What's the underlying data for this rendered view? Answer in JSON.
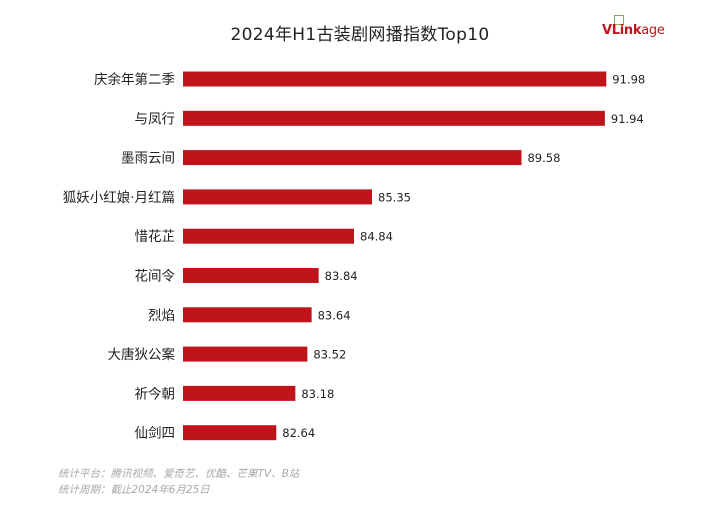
{
  "logo": {
    "text_main": "VLink",
    "text_sub": "age",
    "color": "#c2161b"
  },
  "chart_data": {
    "type": "bar",
    "orientation": "horizontal",
    "title": "2024年H1古装剧网播指数Top10",
    "categories": [
      "庆余年第二季",
      "与凤行",
      "墨雨云间",
      "狐妖小红娘·月红篇",
      "惜花芷",
      "花间令",
      "烈焰",
      "大唐狄公案",
      "祈今朝",
      "仙剑四"
    ],
    "values": [
      91.98,
      91.94,
      89.58,
      85.35,
      84.84,
      83.84,
      83.64,
      83.52,
      83.18,
      82.64
    ],
    "value_labels": [
      "91.98",
      "91.94",
      "89.58",
      "85.35",
      "84.84",
      "83.84",
      "83.64",
      "83.52",
      "83.18",
      "82.64"
    ],
    "xlim": [
      80.0,
      92.0
    ],
    "bar_color": "#c0141b",
    "grid": false,
    "legend": "none"
  },
  "footer": {
    "line1": "统计平台：腾讯视频、爱奇艺、优酷、芒果TV、B站",
    "line2": "统计周期：截止2024年6月25日"
  }
}
